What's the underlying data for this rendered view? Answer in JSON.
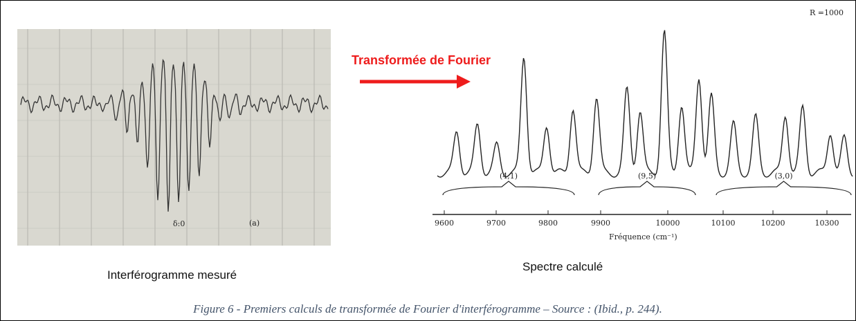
{
  "left_panel": {
    "label": "(a)",
    "marker": "δ:0",
    "caption": "Interférogramme mesuré"
  },
  "arrow_label": "Transformée de Fourier",
  "right_panel": {
    "resolution": "R =1000",
    "groups": [
      "(4,1)",
      "(9,5)",
      "(3,0)"
    ],
    "axis_ticks": [
      "9600",
      "9700",
      "9800",
      "9900",
      "10000",
      "10100",
      "10200",
      "10300"
    ],
    "axis_label": "Fréquence (cm⁻¹)",
    "caption": "Spectre calculé"
  },
  "figure_caption": "Figure 6 - Premiers calculs de transformée de Fourier d'interférogramme – Source : (Ibid., p. 244)."
}
